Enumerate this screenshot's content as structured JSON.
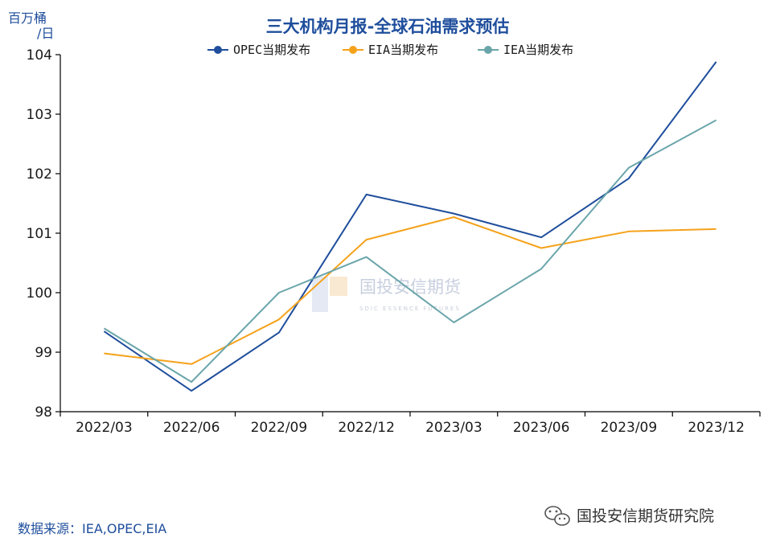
{
  "chart_data": {
    "type": "line",
    "title": "三大机构月报-全球石油需求预估",
    "ylabel_line1": "百万桶",
    "ylabel_line2": "/日",
    "ylim": [
      98,
      104
    ],
    "yticks": [
      "98",
      "99",
      "100",
      "101",
      "102",
      "103",
      "104"
    ],
    "categories": [
      "2022/03",
      "2022/06",
      "2022/09",
      "2022/12",
      "2023/03",
      "2023/06",
      "2023/09",
      "2023/12"
    ],
    "series": [
      {
        "name": "OPEC当期发布",
        "color": "#1f4e9c",
        "values": [
          99.35,
          98.35,
          99.33,
          101.65,
          101.33,
          100.93,
          101.92,
          103.88
        ]
      },
      {
        "name": "EIA当期发布",
        "color": "#f5a21b",
        "values": [
          98.98,
          98.8,
          99.55,
          100.89,
          101.27,
          100.75,
          101.03,
          101.07
        ]
      },
      {
        "name": "IEA当期发布",
        "color": "#6aa5aa",
        "values": [
          99.4,
          98.5,
          100.0,
          100.6,
          99.5,
          100.4,
          102.1,
          102.9
        ]
      }
    ],
    "grid": false,
    "legend_position": "top-center"
  },
  "source_text": "数据来源：IEA,OPEC,EIA",
  "watermark": {
    "name": "国投安信期货",
    "sub": "SDIC ESSENCE FUTURES"
  },
  "brand": {
    "icon": "wechat-icon",
    "text": "国投安信期货研究院"
  }
}
